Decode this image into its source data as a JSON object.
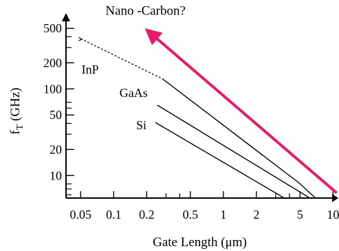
{
  "chart_data": {
    "type": "line",
    "title": "",
    "xlabel": "Gate Length (μm)",
    "ylabel_main": "f",
    "ylabel_sub": "T",
    "ylabel_rest": " (GHz)",
    "x_scale": "log",
    "y_scale": "log",
    "xlim": [
      0.045,
      11
    ],
    "ylim": [
      5.5,
      560
    ],
    "grid": false,
    "legend": "none",
    "x_ticks": [
      {
        "value": 0.05,
        "label": "0.05"
      },
      {
        "value": 0.1,
        "label": "0.1"
      },
      {
        "value": 0.2,
        "label": "0.2"
      },
      {
        "value": 0.5,
        "label": "0.5"
      },
      {
        "value": 1,
        "label": "1"
      },
      {
        "value": 2,
        "label": "2"
      },
      {
        "value": 5,
        "label": "5"
      },
      {
        "value": 10,
        "label": "10"
      }
    ],
    "x_minor_ticks": [
      0.3,
      0.4,
      3,
      4
    ],
    "y_ticks": [
      {
        "value": 10,
        "label": "10"
      },
      {
        "value": 20,
        "label": "20"
      },
      {
        "value": 50,
        "label": "50"
      },
      {
        "value": 100,
        "label": "100"
      },
      {
        "value": 200,
        "label": "200"
      },
      {
        "value": 500,
        "label": "500"
      }
    ],
    "y_minor_ticks": [
      6,
      7,
      8,
      30,
      40,
      60,
      70,
      300,
      400
    ],
    "series": [
      {
        "name": "InP",
        "style": "solid",
        "x": [
          0.28,
          4.9,
          6.8
        ],
        "y": [
          130,
          8.2,
          5.6
        ]
      },
      {
        "name": "InP",
        "style": "dashed",
        "x": [
          0.05,
          0.28
        ],
        "y": [
          380,
          130
        ]
      },
      {
        "name": "GaAs",
        "style": "solid",
        "x": [
          0.25,
          6.0
        ],
        "y": [
          65,
          5.6
        ]
      },
      {
        "name": "Si",
        "style": "solid",
        "x": [
          0.24,
          3.5
        ],
        "y": [
          41,
          5.6
        ]
      }
    ],
    "annotations": [
      {
        "text": "Nano -Carbon?",
        "style": "arrow",
        "color": "#e8196a",
        "from_x": 10.8,
        "from_y": 6.3,
        "to_x": 0.2,
        "to_y": 480
      }
    ]
  }
}
